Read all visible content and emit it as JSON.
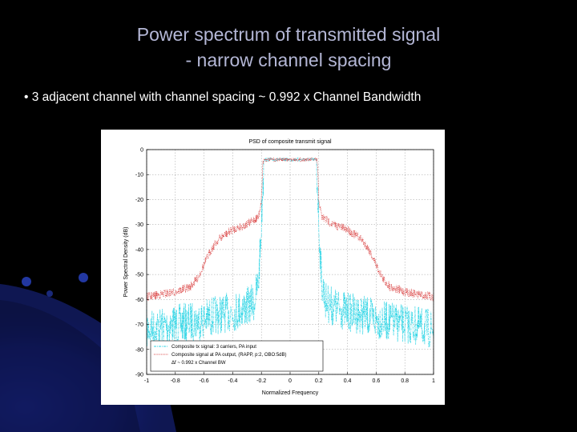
{
  "slide": {
    "title_line1": "Power spectrum of transmitted signal",
    "title_line2": "- narrow channel spacing",
    "bullet": "• 3 adjacent channel  with channel spacing ~ 0.992 x Channel Bandwidth",
    "colors": {
      "background": "#000000",
      "title": "#b4b7d6",
      "accent_blue": "#1a2c9a"
    }
  },
  "chart_data": {
    "type": "line",
    "title": "PSD of composite transmit signal",
    "xlabel": "Normalized Frequency",
    "ylabel": "Power Spectral Density (dB)",
    "xlim": [
      -1,
      1
    ],
    "ylim": [
      -90,
      0
    ],
    "xticks": [
      "-1",
      "-0.8",
      "-0.6",
      "-0.4",
      "-0.2",
      "0",
      "0.2",
      "0.4",
      "0.6",
      "0.8",
      "1"
    ],
    "yticks": [
      "0",
      "-10",
      "-20",
      "-30",
      "-40",
      "-50",
      "-60",
      "-70",
      "-80",
      "-90"
    ],
    "grid": true,
    "legend_position": "bottom-left",
    "series": [
      {
        "name": "Composite tx signal: 3 carriers, PA input",
        "color": "#33d6e6",
        "style": "dash-dot",
        "x": [
          -1.0,
          -0.9,
          -0.8,
          -0.7,
          -0.6,
          -0.5,
          -0.4,
          -0.3,
          -0.25,
          -0.22,
          -0.2,
          -0.19,
          -0.18,
          0.0,
          0.18,
          0.19,
          0.2,
          0.22,
          0.25,
          0.3,
          0.4,
          0.5,
          0.6,
          0.7,
          0.8,
          0.9,
          1.0
        ],
        "y": [
          -64,
          -63,
          -62,
          -61,
          -60,
          -58,
          -57,
          -55,
          -53,
          -45,
          -22,
          -5,
          -4,
          -4,
          -4,
          -5,
          -22,
          -45,
          -53,
          -55,
          -57,
          -58,
          -60,
          -61,
          -62,
          -63,
          -64
        ]
      },
      {
        "name": "Composite signal at PA output, (RAPP, p:2, OBO:5dB)",
        "color": "#d94040",
        "style": "dotted",
        "x": [
          -1.0,
          -0.9,
          -0.8,
          -0.7,
          -0.65,
          -0.6,
          -0.55,
          -0.5,
          -0.45,
          -0.4,
          -0.3,
          -0.25,
          -0.22,
          -0.2,
          -0.19,
          -0.18,
          0.0,
          0.18,
          0.19,
          0.2,
          0.22,
          0.25,
          0.3,
          0.4,
          0.45,
          0.5,
          0.55,
          0.6,
          0.65,
          0.7,
          0.8,
          0.9,
          1.0
        ],
        "y": [
          -59,
          -58,
          -57,
          -55,
          -52,
          -46,
          -40,
          -36,
          -34,
          -32,
          -30,
          -28,
          -27,
          -20,
          -5,
          -4,
          -4,
          -4,
          -5,
          -20,
          -27,
          -28,
          -30,
          -32,
          -34,
          -36,
          -40,
          -46,
          -52,
          -55,
          -57,
          -58,
          -59
        ]
      }
    ],
    "legend_note": "Δf ~ 0.992 x Channel BW"
  }
}
